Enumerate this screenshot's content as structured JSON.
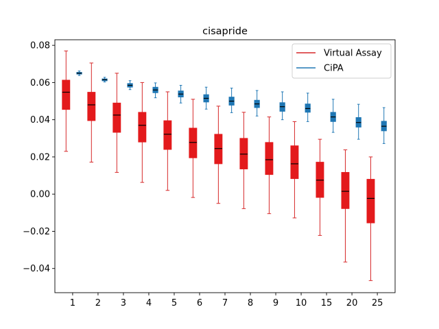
{
  "chart_data": {
    "type": "box",
    "title": "cisapride",
    "xlabel": "",
    "ylabel": "",
    "categories": [
      "1",
      "2",
      "3",
      "4",
      "5",
      "6",
      "7",
      "8",
      "9",
      "10",
      "15",
      "20",
      "25"
    ],
    "ylim": [
      -0.053,
      0.083
    ],
    "yticks": [
      -0.04,
      -0.02,
      0.0,
      0.02,
      0.04,
      0.06,
      0.08
    ],
    "ytick_labels": [
      "−0.04",
      "−0.02",
      "0.00",
      "0.02",
      "0.04",
      "0.06",
      "0.08"
    ],
    "legend_position": "top-right",
    "grid": false,
    "series": [
      {
        "name": "Virtual Assay",
        "color": "#d62728",
        "fill": "#e31a1c",
        "boxes": [
          {
            "whislo": 0.023,
            "q1": 0.0455,
            "med": 0.0548,
            "q3": 0.0613,
            "whishi": 0.077
          },
          {
            "whislo": 0.0172,
            "q1": 0.0395,
            "med": 0.048,
            "q3": 0.0548,
            "whishi": 0.0705
          },
          {
            "whislo": 0.0117,
            "q1": 0.0332,
            "med": 0.0425,
            "q3": 0.049,
            "whishi": 0.065
          },
          {
            "whislo": 0.0063,
            "q1": 0.028,
            "med": 0.037,
            "q3": 0.044,
            "whishi": 0.06
          },
          {
            "whislo": 0.002,
            "q1": 0.024,
            "med": 0.0322,
            "q3": 0.0395,
            "whishi": 0.055
          },
          {
            "whislo": -0.0018,
            "q1": 0.0195,
            "med": 0.0278,
            "q3": 0.0355,
            "whishi": 0.051
          },
          {
            "whislo": -0.005,
            "q1": 0.0163,
            "med": 0.0245,
            "q3": 0.0322,
            "whishi": 0.0473
          },
          {
            "whislo": -0.0078,
            "q1": 0.0135,
            "med": 0.0215,
            "q3": 0.03,
            "whishi": 0.044
          },
          {
            "whislo": -0.0105,
            "q1": 0.0105,
            "med": 0.0185,
            "q3": 0.0278,
            "whishi": 0.0415
          },
          {
            "whislo": -0.0128,
            "q1": 0.0083,
            "med": 0.0163,
            "q3": 0.026,
            "whishi": 0.039
          },
          {
            "whislo": -0.0222,
            "q1": -0.0018,
            "med": 0.0075,
            "q3": 0.0172,
            "whishi": 0.0295
          },
          {
            "whislo": -0.0365,
            "q1": -0.0078,
            "med": 0.0015,
            "q3": 0.0117,
            "whishi": 0.0238
          },
          {
            "whislo": -0.0465,
            "q1": -0.0155,
            "med": -0.0023,
            "q3": 0.008,
            "whishi": 0.02
          }
        ]
      },
      {
        "name": "CiPA",
        "color": "#1f77b4",
        "fill": "#1f77b4",
        "boxes": [
          {
            "whislo": 0.0638,
            "q1": 0.0645,
            "med": 0.065,
            "q3": 0.0655,
            "whishi": 0.0662
          },
          {
            "whislo": 0.0603,
            "q1": 0.0609,
            "med": 0.0615,
            "q3": 0.062,
            "whishi": 0.0628
          },
          {
            "whislo": 0.0562,
            "q1": 0.0575,
            "med": 0.0585,
            "q3": 0.0595,
            "whishi": 0.061
          },
          {
            "whislo": 0.0518,
            "q1": 0.0545,
            "med": 0.056,
            "q3": 0.0575,
            "whishi": 0.0598
          },
          {
            "whislo": 0.049,
            "q1": 0.0522,
            "med": 0.0538,
            "q3": 0.0555,
            "whishi": 0.0585
          },
          {
            "whislo": 0.0457,
            "q1": 0.0495,
            "med": 0.0515,
            "q3": 0.0535,
            "whishi": 0.0575
          },
          {
            "whislo": 0.0438,
            "q1": 0.0478,
            "med": 0.05,
            "q3": 0.0522,
            "whishi": 0.057
          },
          {
            "whislo": 0.042,
            "q1": 0.0465,
            "med": 0.0485,
            "q3": 0.0505,
            "whishi": 0.0557
          },
          {
            "whislo": 0.04,
            "q1": 0.0445,
            "med": 0.047,
            "q3": 0.0492,
            "whishi": 0.055
          },
          {
            "whislo": 0.039,
            "q1": 0.044,
            "med": 0.046,
            "q3": 0.0485,
            "whishi": 0.0543
          },
          {
            "whislo": 0.0332,
            "q1": 0.039,
            "med": 0.0415,
            "q3": 0.044,
            "whishi": 0.051
          },
          {
            "whislo": 0.0295,
            "q1": 0.036,
            "med": 0.0385,
            "q3": 0.0412,
            "whishi": 0.0483
          },
          {
            "whislo": 0.0272,
            "q1": 0.034,
            "med": 0.0365,
            "q3": 0.0392,
            "whishi": 0.0465
          }
        ]
      }
    ]
  }
}
